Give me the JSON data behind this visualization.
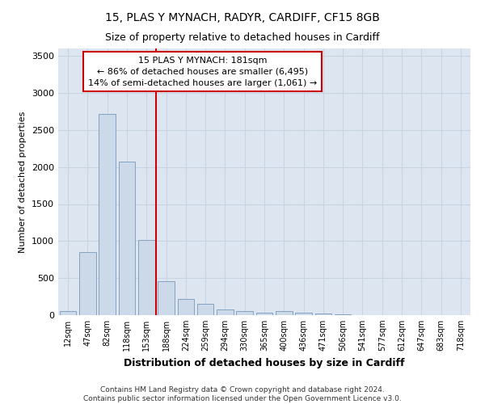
{
  "title1": "15, PLAS Y MYNACH, RADYR, CARDIFF, CF15 8GB",
  "title2": "Size of property relative to detached houses in Cardiff",
  "xlabel": "Distribution of detached houses by size in Cardiff",
  "ylabel": "Number of detached properties",
  "categories": [
    "12sqm",
    "47sqm",
    "82sqm",
    "118sqm",
    "153sqm",
    "188sqm",
    "224sqm",
    "259sqm",
    "294sqm",
    "330sqm",
    "365sqm",
    "400sqm",
    "436sqm",
    "471sqm",
    "506sqm",
    "541sqm",
    "577sqm",
    "612sqm",
    "647sqm",
    "683sqm",
    "718sqm"
  ],
  "values": [
    60,
    850,
    2720,
    2070,
    1020,
    455,
    215,
    150,
    80,
    55,
    35,
    55,
    30,
    20,
    8,
    5,
    3,
    2,
    2,
    1,
    1
  ],
  "bar_color": "#ccd9e8",
  "bar_edge_color": "#7799bb",
  "grid_color": "#c8d4e4",
  "background_color": "#dde6f0",
  "fig_background": "#ffffff",
  "vline_color": "#cc0000",
  "vline_x_idx": 5,
  "annotation_text_line1": "15 PLAS Y MYNACH: 181sqm",
  "annotation_text_line2": "← 86% of detached houses are smaller (6,495)",
  "annotation_text_line3": "14% of semi-detached houses are larger (1,061) →",
  "annotation_box_color": "#ffffff",
  "annotation_edge_color": "#cc0000",
  "footer": "Contains HM Land Registry data © Crown copyright and database right 2024.\nContains public sector information licensed under the Open Government Licence v3.0.",
  "ylim": [
    0,
    3600
  ],
  "yticks": [
    0,
    500,
    1000,
    1500,
    2000,
    2500,
    3000,
    3500
  ],
  "title1_fontsize": 10,
  "title2_fontsize": 9,
  "xlabel_fontsize": 9,
  "ylabel_fontsize": 8,
  "xtick_fontsize": 7,
  "ytick_fontsize": 8,
  "footer_fontsize": 6.5
}
